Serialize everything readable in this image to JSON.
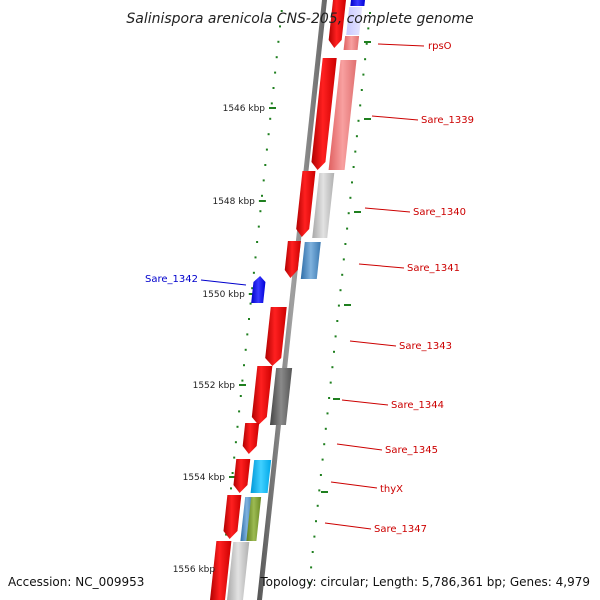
{
  "title": "Salinispora arenicola CNS-205, complete genome",
  "footer": {
    "accession": "Accession: NC_009953",
    "summary": "Topology: circular; Length: 5,786,361 bp; Genes: 4,979"
  },
  "colors": {
    "forward_label": "#cc0000",
    "reverse_label": "#0000cc",
    "tick": "#1f7f1f"
  },
  "tick_labels": [
    "1546 kbp",
    "1548 kbp",
    "1550 kbp",
    "1552 kbp",
    "1554 kbp",
    "1556 kbp"
  ],
  "gene_labels": [
    {
      "name": "rpsO",
      "strand": "forward"
    },
    {
      "name": "Sare_1339",
      "strand": "forward"
    },
    {
      "name": "Sare_1340",
      "strand": "forward"
    },
    {
      "name": "Sare_1341",
      "strand": "forward"
    },
    {
      "name": "Sare_1342",
      "strand": "reverse"
    },
    {
      "name": "Sare_1343",
      "strand": "forward"
    },
    {
      "name": "Sare_1344",
      "strand": "forward"
    },
    {
      "name": "Sare_1345",
      "strand": "forward"
    },
    {
      "name": "thyX",
      "strand": "forward"
    },
    {
      "name": "Sare_1347",
      "strand": "forward"
    }
  ]
}
